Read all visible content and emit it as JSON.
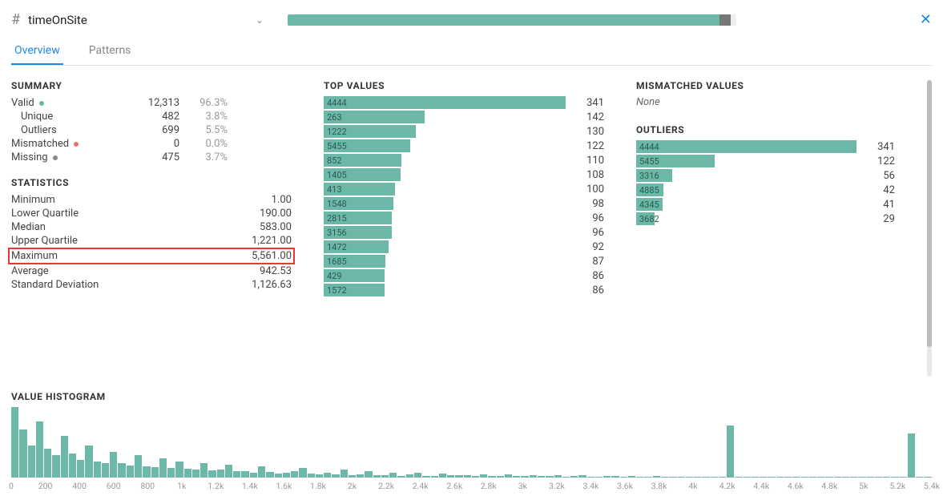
{
  "colors": {
    "teal": "#6bb8a8",
    "teal_text": "#2d5a51",
    "grey_seg": "#777777",
    "light_seg": "#eeeeee",
    "valid_dot": "#6bb8a8",
    "mismatch_dot": "#e57373",
    "missing_dot": "#888888",
    "axis_text": "#999999",
    "highlight_border": "#e53935"
  },
  "header": {
    "icon": "#",
    "column_name": "timeOnSite",
    "quality_bar": [
      {
        "color_key": "teal",
        "pct": 96.3
      },
      {
        "color_key": "grey_seg",
        "pct": 2.5
      },
      {
        "color_key": "light_seg",
        "pct": 1.2
      }
    ]
  },
  "tabs": [
    {
      "label": "Overview",
      "active": true
    },
    {
      "label": "Patterns",
      "active": false
    }
  ],
  "summary": {
    "title": "SUMMARY",
    "rows": [
      {
        "label": "Valid",
        "dot_key": "valid_dot",
        "count": "12,313",
        "pct": "96.3%",
        "indent": false
      },
      {
        "label": "Unique",
        "count": "482",
        "pct": "3.8%",
        "indent": true
      },
      {
        "label": "Outliers",
        "count": "699",
        "pct": "5.5%",
        "indent": true
      },
      {
        "label": "Mismatched",
        "dot_key": "mismatch_dot",
        "count": "0",
        "pct": "0.0%",
        "indent": false
      },
      {
        "label": "Missing",
        "dot_key": "missing_dot",
        "count": "475",
        "pct": "3.7%",
        "indent": false
      }
    ]
  },
  "statistics": {
    "title": "STATISTICS",
    "rows": [
      {
        "label": "Minimum",
        "value": "1.00",
        "highlight": false
      },
      {
        "label": "Lower Quartile",
        "value": "190.00",
        "highlight": false
      },
      {
        "label": "Median",
        "value": "583.00",
        "highlight": false
      },
      {
        "label": "Upper Quartile",
        "value": "1,221.00",
        "highlight": false
      },
      {
        "label": "Maximum",
        "value": "5,561.00",
        "highlight": true
      },
      {
        "label": "Average",
        "value": "942.53",
        "highlight": false
      },
      {
        "label": "Standard Deviation",
        "value": "1,126.63",
        "highlight": false
      }
    ]
  },
  "top_values": {
    "title": "TOP VALUES",
    "max_count": 341,
    "rows": [
      {
        "label": "4444",
        "count": 341
      },
      {
        "label": "263",
        "count": 142
      },
      {
        "label": "1222",
        "count": 130
      },
      {
        "label": "5455",
        "count": 122
      },
      {
        "label": "852",
        "count": 110
      },
      {
        "label": "1405",
        "count": 108
      },
      {
        "label": "413",
        "count": 100
      },
      {
        "label": "1548",
        "count": 98
      },
      {
        "label": "2815",
        "count": 96
      },
      {
        "label": "3156",
        "count": 96
      },
      {
        "label": "1472",
        "count": 92
      },
      {
        "label": "1685",
        "count": 87
      },
      {
        "label": "429",
        "count": 86
      },
      {
        "label": "1572",
        "count": 86
      }
    ]
  },
  "mismatched": {
    "title": "MISMATCHED VALUES",
    "none_text": "None"
  },
  "outliers": {
    "title": "OUTLIERS",
    "max_count": 341,
    "rows": [
      {
        "label": "4444",
        "count": 341
      },
      {
        "label": "5455",
        "count": 122
      },
      {
        "label": "3316",
        "count": 56
      },
      {
        "label": "4885",
        "count": 42
      },
      {
        "label": "4345",
        "count": 41
      },
      {
        "label": "3682",
        "count": 29
      }
    ]
  },
  "histogram": {
    "title": "VALUE HISTOGRAM",
    "axis_ticks": [
      "0",
      "200",
      "400",
      "600",
      "800",
      "1k",
      "1.2k",
      "1.4k",
      "1.6k",
      "1.8k",
      "2k",
      "2.2k",
      "2.4k",
      "2.6k",
      "2.8k",
      "3k",
      "3.2k",
      "3.4k",
      "3.6k",
      "3.8k",
      "4k",
      "4.2k",
      "4.4k",
      "4.6k",
      "4.8k",
      "5k",
      "5.2k",
      "5.4k"
    ],
    "values": [
      88,
      60,
      40,
      70,
      36,
      28,
      52,
      30,
      22,
      40,
      20,
      18,
      32,
      18,
      15,
      28,
      14,
      13,
      24,
      12,
      20,
      11,
      10,
      18,
      9,
      10,
      16,
      8,
      8,
      6,
      14,
      7,
      5,
      6,
      8,
      12,
      5,
      4,
      6,
      4,
      10,
      3,
      4,
      8,
      3,
      3,
      6,
      2,
      4,
      6,
      2,
      2,
      5,
      3,
      3,
      3,
      2,
      4,
      2,
      2,
      4,
      2,
      2,
      3,
      2,
      2,
      3,
      1,
      2,
      3,
      1,
      1,
      2,
      2,
      1,
      2,
      1,
      1,
      2,
      1,
      1,
      1,
      1,
      1,
      1,
      1,
      1,
      65,
      1,
      1,
      1,
      1,
      1,
      1,
      1,
      1,
      1,
      1,
      1,
      1,
      1,
      1,
      1,
      1,
      1,
      1,
      1,
      1,
      1,
      55,
      1,
      1
    ]
  }
}
